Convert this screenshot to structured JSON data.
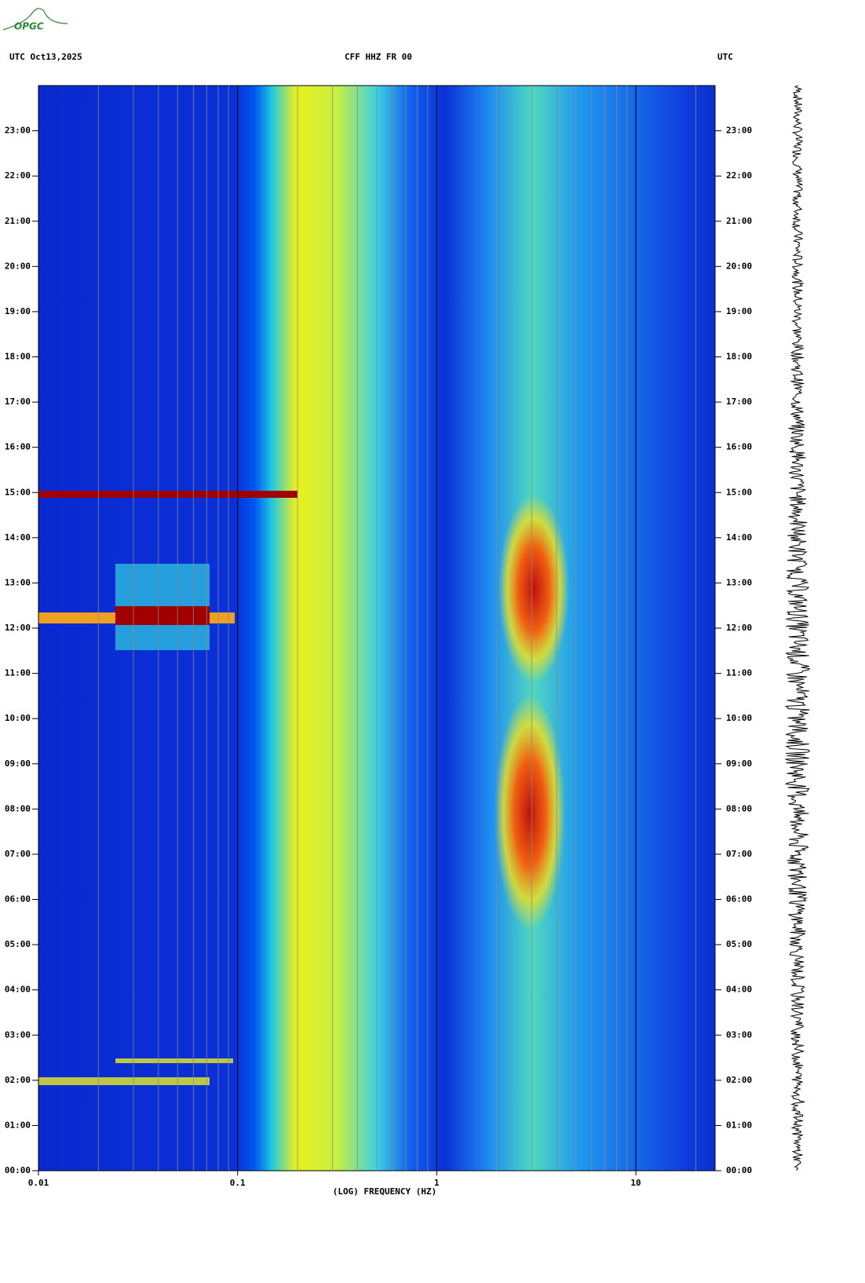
{
  "chart_data": {
    "type": "spectrogram",
    "logo": "OPGC",
    "title_left": "UTC  Oct13,2025",
    "title": "CFF HHZ FR 00",
    "title_right": "UTC",
    "x_label": "(LOG) FREQUENCY (HZ)",
    "x_scale": "log",
    "xlim": [
      0.01,
      25
    ],
    "xticks": [
      0.01,
      0.1,
      1,
      10
    ],
    "xgrid_minor": [
      0.02,
      0.03,
      0.04,
      0.05,
      0.06,
      0.07,
      0.08,
      0.09,
      0.2,
      0.3,
      0.4,
      0.5,
      0.6,
      0.7,
      0.8,
      0.9,
      2,
      3,
      4,
      5,
      6,
      7,
      8,
      9,
      20
    ],
    "ylim": [
      0,
      24
    ],
    "yticks": [
      {
        "value": 0,
        "label": "00:00"
      },
      {
        "value": 1,
        "label": "01:00"
      },
      {
        "value": 2,
        "label": "02:00"
      },
      {
        "value": 3,
        "label": "03:00"
      },
      {
        "value": 4,
        "label": "04:00"
      },
      {
        "value": 5,
        "label": "05:00"
      },
      {
        "value": 6,
        "label": "06:00"
      },
      {
        "value": 7,
        "label": "07:00"
      },
      {
        "value": 8,
        "label": "08:00"
      },
      {
        "value": 9,
        "label": "09:00"
      },
      {
        "value": 10,
        "label": "10:00"
      },
      {
        "value": 11,
        "label": "11:00"
      },
      {
        "value": 12,
        "label": "12:00"
      },
      {
        "value": 13,
        "label": "13:00"
      },
      {
        "value": 14,
        "label": "14:00"
      },
      {
        "value": 15,
        "label": "15:00"
      },
      {
        "value": 16,
        "label": "16:00"
      },
      {
        "value": 17,
        "label": "17:00"
      },
      {
        "value": 18,
        "label": "18:00"
      },
      {
        "value": 19,
        "label": "19:00"
      },
      {
        "value": 20,
        "label": "20:00"
      },
      {
        "value": 21,
        "label": "21:00"
      },
      {
        "value": 22,
        "label": "22:00"
      },
      {
        "value": 23,
        "label": "23:00"
      }
    ]
  }
}
